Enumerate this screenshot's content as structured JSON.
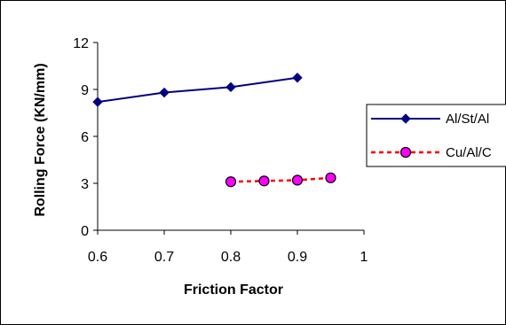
{
  "chart_data": {
    "type": "line",
    "xlabel": "Friction Factor",
    "ylabel": "Rolling Force (KN/mm)",
    "xlim": [
      0.6,
      1.0
    ],
    "ylim": [
      0,
      12
    ],
    "x_ticks": [
      "0.6",
      "0.7",
      "0.8",
      "0.9",
      "1"
    ],
    "y_ticks": [
      "0",
      "3",
      "6",
      "9",
      "12"
    ],
    "grid": false,
    "legend_position": "right",
    "series": [
      {
        "name": "Al/St/Al",
        "x": [
          0.6,
          0.7,
          0.8,
          0.9
        ],
        "y": [
          8.2,
          8.8,
          9.15,
          9.75
        ],
        "color": "#000080",
        "line_style": "solid",
        "marker": "diamond",
        "marker_color": "#000080"
      },
      {
        "name": "Cu/Al/C",
        "x": [
          0.8,
          0.85,
          0.9,
          0.95
        ],
        "y": [
          3.1,
          3.15,
          3.2,
          3.35
        ],
        "color": "#ff0000",
        "line_style": "dashed",
        "marker": "circle",
        "marker_color": "#ff00ff"
      }
    ]
  }
}
